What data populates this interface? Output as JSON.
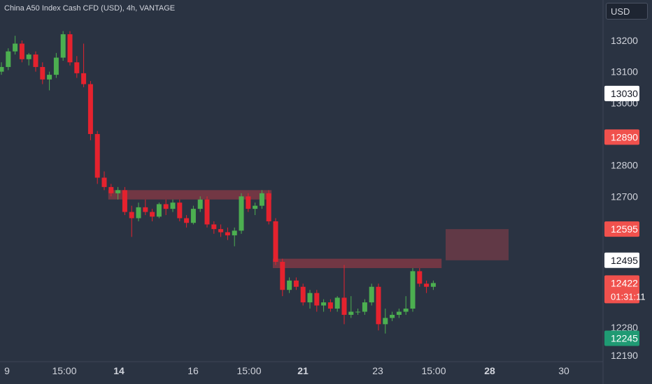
{
  "header": {
    "title": "China A50 Index Cash CFD (USD), 4h, VANTAGE",
    "currency": "USD"
  },
  "colors": {
    "background": "#2a3342",
    "up": "#4caf50",
    "down": "#e5222e",
    "grid_text": "#d1d4dc",
    "zone": "#8b3a45",
    "stop_zone": "#6b3b46",
    "target_zone": "#2e4450",
    "label_white": "#ffffff",
    "label_red": "#f0514d",
    "label_green": "#1f9a73"
  },
  "chart_data": {
    "type": "candlestick",
    "title": "China A50 Index Cash CFD (USD), 4h, VANTAGE",
    "y_axis": {
      "ticks": [
        13200,
        13100,
        13000,
        12800,
        12700,
        12280,
        12190
      ],
      "ylim": [
        12190,
        13280
      ]
    },
    "x_axis": {
      "ticks": [
        "9",
        "15:00",
        "14",
        "16",
        "15:00",
        "21",
        "23",
        "15:00",
        "28",
        "30"
      ],
      "bold_ticks": [
        "14",
        "21",
        "28"
      ]
    },
    "price_labels": [
      {
        "value": "13030",
        "style": "white"
      },
      {
        "value": "12890",
        "style": "red"
      },
      {
        "value": "12595",
        "style": "red"
      },
      {
        "value": "12495",
        "style": "white"
      },
      {
        "value": "12422",
        "sub": "01:31:11",
        "style": "red"
      },
      {
        "value": "12245",
        "style": "green"
      }
    ],
    "candles": [
      [
        13100,
        13130,
        13090,
        13115
      ],
      [
        13115,
        13175,
        13105,
        13165
      ],
      [
        13165,
        13215,
        13155,
        13190
      ],
      [
        13190,
        13200,
        13130,
        13140
      ],
      [
        13140,
        13160,
        13120,
        13155
      ],
      [
        13155,
        13165,
        13100,
        13115
      ],
      [
        13115,
        13130,
        13060,
        13075
      ],
      [
        13075,
        13100,
        13040,
        13090
      ],
      [
        13090,
        13160,
        13080,
        13145
      ],
      [
        13145,
        13230,
        13135,
        13220
      ],
      [
        13220,
        13230,
        13120,
        13130
      ],
      [
        13130,
        13150,
        13080,
        13095
      ],
      [
        13095,
        13190,
        13050,
        13060
      ],
      [
        13060,
        13070,
        12880,
        12900
      ],
      [
        12900,
        12910,
        12740,
        12760
      ],
      [
        12760,
        12780,
        12720,
        12730
      ],
      [
        12730,
        12740,
        12700,
        12710
      ],
      [
        12710,
        12730,
        12690,
        12720
      ],
      [
        12720,
        12730,
        12640,
        12650
      ],
      [
        12650,
        12670,
        12570,
        12630
      ],
      [
        12630,
        12680,
        12620,
        12665
      ],
      [
        12665,
        12690,
        12640,
        12650
      ],
      [
        12650,
        12660,
        12620,
        12635
      ],
      [
        12635,
        12680,
        12630,
        12675
      ],
      [
        12675,
        12690,
        12640,
        12660
      ],
      [
        12660,
        12690,
        12650,
        12680
      ],
      [
        12680,
        12690,
        12620,
        12630
      ],
      [
        12630,
        12640,
        12600,
        12615
      ],
      [
        12615,
        12670,
        12610,
        12660
      ],
      [
        12660,
        12700,
        12650,
        12690
      ],
      [
        12690,
        12700,
        12600,
        12610
      ],
      [
        12610,
        12620,
        12580,
        12595
      ],
      [
        12595,
        12610,
        12570,
        12585
      ],
      [
        12585,
        12600,
        12560,
        12575
      ],
      [
        12575,
        12600,
        12540,
        12590
      ],
      [
        12590,
        12710,
        12580,
        12700
      ],
      [
        12700,
        12710,
        12650,
        12660
      ],
      [
        12660,
        12680,
        12640,
        12670
      ],
      [
        12670,
        12720,
        12660,
        12710
      ],
      [
        12710,
        12720,
        12610,
        12620
      ],
      [
        12620,
        12630,
        12480,
        12490
      ],
      [
        12490,
        12500,
        12380,
        12400
      ],
      [
        12400,
        12440,
        12390,
        12430
      ],
      [
        12430,
        12440,
        12400,
        12410
      ],
      [
        12410,
        12420,
        12350,
        12360
      ],
      [
        12360,
        12400,
        12340,
        12390
      ],
      [
        12390,
        12400,
        12330,
        12350
      ],
      [
        12350,
        12370,
        12330,
        12360
      ],
      [
        12360,
        12370,
        12330,
        12340
      ],
      [
        12340,
        12380,
        12330,
        12375
      ],
      [
        12375,
        12480,
        12290,
        12320
      ],
      [
        12320,
        12380,
        12310,
        12330
      ],
      [
        12330,
        12340,
        12320,
        12330
      ],
      [
        12330,
        12370,
        12320,
        12360
      ],
      [
        12360,
        12420,
        12350,
        12410
      ],
      [
        12410,
        12420,
        12270,
        12290
      ],
      [
        12290,
        12340,
        12260,
        12310
      ],
      [
        12310,
        12330,
        12300,
        12320
      ],
      [
        12320,
        12340,
        12310,
        12330
      ],
      [
        12330,
        12380,
        12320,
        12340
      ],
      [
        12340,
        12470,
        12330,
        12460
      ],
      [
        12460,
        12470,
        12410,
        12420
      ],
      [
        12420,
        12430,
        12390,
        12410
      ],
      [
        12410,
        12430,
        12400,
        12422
      ]
    ],
    "resistance_zones": [
      {
        "from": 12690,
        "to": 12720
      },
      {
        "from": 12470,
        "to": 12500
      }
    ],
    "position": {
      "stop_from": 12495,
      "stop_to": 12595,
      "target_from": 12245,
      "target_to": 12495
    }
  }
}
